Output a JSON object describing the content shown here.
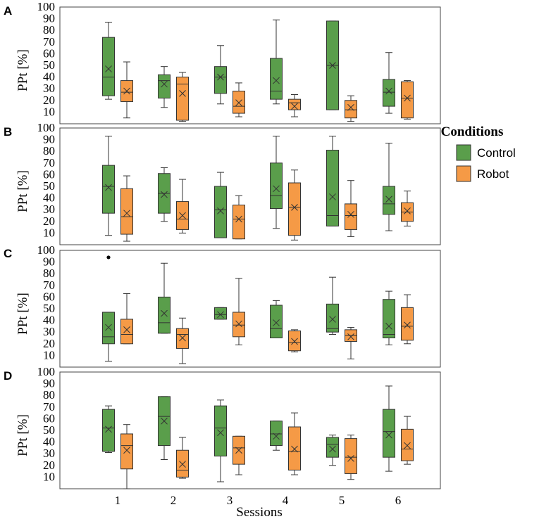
{
  "chart_data": {
    "type": "boxplot",
    "xlabel": "Sessions",
    "sessions": [
      "1",
      "2",
      "3",
      "4",
      "5",
      "6"
    ],
    "ylabel": "PPt [%]",
    "yticks": [
      "10",
      "20",
      "30",
      "40",
      "50",
      "60",
      "70",
      "80",
      "90",
      "100"
    ],
    "ylim": [
      0,
      100
    ],
    "colors": {
      "Control": "#5a9e4b",
      "Robot": "#f59a46",
      "stroke": "#333333"
    },
    "legend": {
      "title": "Conditions",
      "entries": [
        "Control",
        "Robot"
      ]
    },
    "panels": [
      {
        "letter": "A",
        "series": [
          {
            "name": "Control",
            "boxes": [
              {
                "min": 21,
                "q1": 24,
                "median": 40,
                "q3": 74,
                "max": 87,
                "mean": 47
              },
              {
                "min": 14,
                "q1": 22,
                "median": 37,
                "q3": 42,
                "max": 49,
                "mean": 34
              },
              {
                "min": 17,
                "q1": 26,
                "median": 40,
                "q3": 49,
                "max": 67,
                "mean": 40
              },
              {
                "min": 17,
                "q1": 21,
                "median": 28,
                "q3": 56,
                "max": 89,
                "mean": 37
              },
              {
                "min": 12,
                "q1": 12,
                "median": 50,
                "q3": 88,
                "max": 88,
                "mean": 50
              },
              {
                "min": 9,
                "q1": 15,
                "median": 27,
                "q3": 38,
                "max": 61,
                "mean": 28
              }
            ]
          },
          {
            "name": "Robot",
            "boxes": [
              {
                "min": 5,
                "q1": 19,
                "median": 27,
                "q3": 37,
                "max": 53,
                "mean": 28
              },
              {
                "min": 2,
                "q1": 3,
                "median": 34,
                "q3": 40,
                "max": 44,
                "mean": 26
              },
              {
                "min": 6,
                "q1": 9,
                "median": 15,
                "q3": 28,
                "max": 35,
                "mean": 18
              },
              {
                "min": 6,
                "q1": 12,
                "median": 18,
                "q3": 21,
                "max": 25,
                "mean": 15
              },
              {
                "min": 2,
                "q1": 5,
                "median": 12,
                "q3": 20,
                "max": 24,
                "mean": 14
              },
              {
                "min": 4,
                "q1": 5,
                "median": 22,
                "q3": 36,
                "max": 37,
                "mean": 22
              }
            ]
          }
        ]
      },
      {
        "letter": "B",
        "series": [
          {
            "name": "Control",
            "boxes": [
              {
                "min": 8,
                "q1": 27,
                "median": 50,
                "q3": 68,
                "max": 93,
                "mean": 49
              },
              {
                "min": 20,
                "q1": 27,
                "median": 44,
                "q3": 61,
                "max": 66,
                "mean": 43
              },
              {
                "min": 6,
                "q1": 6,
                "median": 30,
                "q3": 50,
                "max": 62,
                "mean": 29
              },
              {
                "min": 14,
                "q1": 31,
                "median": 42,
                "q3": 70,
                "max": 93,
                "mean": 48
              },
              {
                "min": 16,
                "q1": 16,
                "median": 25,
                "q3": 81,
                "max": 93,
                "mean": 41
              },
              {
                "min": 12,
                "q1": 26,
                "median": 35,
                "q3": 50,
                "max": 87,
                "mean": 39
              }
            ]
          },
          {
            "name": "Robot",
            "boxes": [
              {
                "min": 3,
                "q1": 9,
                "median": 24,
                "q3": 48,
                "max": 59,
                "mean": 27
              },
              {
                "min": 10,
                "q1": 13,
                "median": 22,
                "q3": 37,
                "max": 56,
                "mean": 25
              },
              {
                "min": 5,
                "q1": 5,
                "median": 22,
                "q3": 34,
                "max": 42,
                "mean": 22
              },
              {
                "min": 4,
                "q1": 8,
                "median": 32,
                "q3": 53,
                "max": 64,
                "mean": 32
              },
              {
                "min": 7,
                "q1": 13,
                "median": 25,
                "q3": 35,
                "max": 55,
                "mean": 26
              },
              {
                "min": 16,
                "q1": 20,
                "median": 28,
                "q3": 36,
                "max": 46,
                "mean": 29
              }
            ]
          }
        ]
      },
      {
        "letter": "C",
        "outliers": [
          {
            "series": "Control",
            "session": "1",
            "value": 94
          }
        ],
        "series": [
          {
            "name": "Control",
            "boxes": [
              {
                "min": 5,
                "q1": 20,
                "median": 26,
                "q3": 47,
                "max": 47,
                "mean": 34
              },
              {
                "min": 29,
                "q1": 29,
                "median": 38,
                "q3": 60,
                "max": 89,
                "mean": 46
              },
              {
                "min": 41,
                "q1": 41,
                "median": 45,
                "q3": 51,
                "max": 51,
                "mean": 45
              },
              {
                "min": 25,
                "q1": 25,
                "median": 33,
                "q3": 53,
                "max": 57,
                "mean": 38
              },
              {
                "min": 28,
                "q1": 30,
                "median": 33,
                "q3": 54,
                "max": 77,
                "mean": 41
              },
              {
                "min": 19,
                "q1": 25,
                "median": 28,
                "q3": 58,
                "max": 65,
                "mean": 35
              }
            ]
          },
          {
            "name": "Robot",
            "boxes": [
              {
                "min": 20,
                "q1": 20,
                "median": 28,
                "q3": 41,
                "max": 63,
                "mean": 32
              },
              {
                "min": 3,
                "q1": 16,
                "median": 28,
                "q3": 33,
                "max": 42,
                "mean": 25
              },
              {
                "min": 19,
                "q1": 26,
                "median": 36,
                "q3": 47,
                "max": 76,
                "mean": 37
              },
              {
                "min": 13,
                "q1": 14,
                "median": 21,
                "q3": 31,
                "max": 32,
                "mean": 22
              },
              {
                "min": 7,
                "q1": 22,
                "median": 27,
                "q3": 32,
                "max": 34,
                "mean": 26
              },
              {
                "min": 20,
                "q1": 23,
                "median": 35,
                "q3": 51,
                "max": 62,
                "mean": 36
              }
            ]
          }
        ]
      },
      {
        "letter": "D",
        "series": [
          {
            "name": "Control",
            "boxes": [
              {
                "min": 31,
                "q1": 32,
                "median": 52,
                "q3": 68,
                "max": 71,
                "mean": 51
              },
              {
                "min": 25,
                "q1": 37,
                "median": 62,
                "q3": 79,
                "max": 79,
                "mean": 58
              },
              {
                "min": 6,
                "q1": 28,
                "median": 52,
                "q3": 71,
                "max": 76,
                "mean": 48
              },
              {
                "min": 33,
                "q1": 37,
                "median": 47,
                "q3": 58,
                "max": 58,
                "mean": 45
              },
              {
                "min": 20,
                "q1": 27,
                "median": 38,
                "q3": 44,
                "max": 46,
                "mean": 34
              },
              {
                "min": 15,
                "q1": 27,
                "median": 49,
                "q3": 68,
                "max": 88,
                "mean": 46
              }
            ]
          },
          {
            "name": "Robot",
            "boxes": [
              {
                "min": 0,
                "q1": 17,
                "median": 37,
                "q3": 47,
                "max": 55,
                "mean": 33
              },
              {
                "min": 9,
                "q1": 10,
                "median": 16,
                "q3": 33,
                "max": 44,
                "mean": 21
              },
              {
                "min": 12,
                "q1": 21,
                "median": 35,
                "q3": 45,
                "max": 45,
                "mean": 33
              },
              {
                "min": 12,
                "q1": 16,
                "median": 32,
                "q3": 53,
                "max": 65,
                "mean": 34
              },
              {
                "min": 8,
                "q1": 13,
                "median": 27,
                "q3": 43,
                "max": 46,
                "mean": 26
              },
              {
                "min": 21,
                "q1": 24,
                "median": 34,
                "q3": 51,
                "max": 62,
                "mean": 37
              }
            ]
          }
        ]
      }
    ]
  }
}
